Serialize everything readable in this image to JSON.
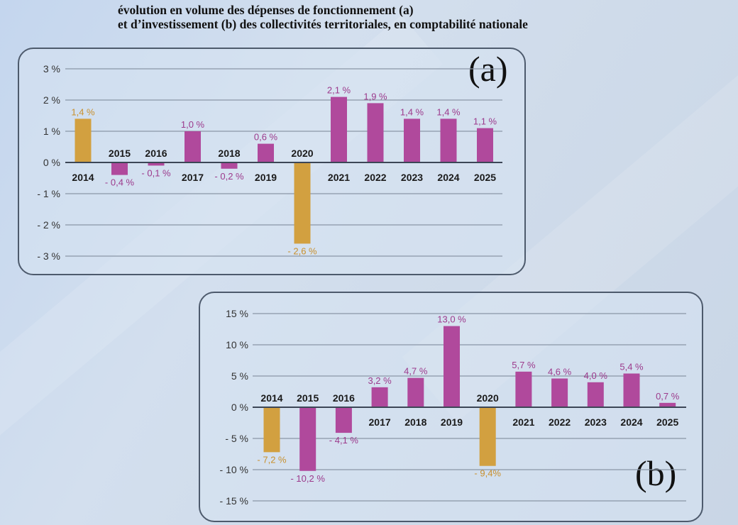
{
  "title": {
    "line1": "évolution en volume des dépenses de fonctionnement (a)",
    "line2": "et d’investissement (b) des collectivités territoriales, en comptabilité nationale"
  },
  "colors": {
    "highlight": "#d2a040",
    "default": "#b0499c",
    "label_default": "#9c3a8c",
    "label_highlight": "#c8902e",
    "grid": "#8a96a6",
    "axis": "#3c4656"
  },
  "chart_data": [
    {
      "type": "bar",
      "panel_label": "(a)",
      "categories": [
        "2014",
        "2015",
        "2016",
        "2017",
        "2018",
        "2019",
        "2020",
        "2021",
        "2022",
        "2023",
        "2024",
        "2025"
      ],
      "values": [
        1.4,
        -0.4,
        -0.1,
        1.0,
        -0.2,
        0.6,
        -2.6,
        2.1,
        1.9,
        1.4,
        1.4,
        1.1
      ],
      "value_labels": [
        "1,4 %",
        "- 0,4 %",
        "- 0,1 %",
        "1,0 %",
        "- 0,2 %",
        "0,6 %",
        "- 2,6 %",
        "2,1 %",
        "1,9 %",
        "1,4 %",
        "1,4 %",
        "1,1 %"
      ],
      "highlighted": [
        "2014",
        "2020"
      ],
      "ylim": [
        -3,
        3
      ],
      "yticks": [
        3,
        2,
        1,
        0,
        -1,
        -2,
        -3
      ],
      "ytick_labels": [
        "3 %",
        "2 %",
        "1 %",
        "0 %",
        "- 1 %",
        "- 2 %",
        "- 3 %"
      ],
      "grid": true
    },
    {
      "type": "bar",
      "panel_label": "(b)",
      "categories": [
        "2014",
        "2015",
        "2016",
        "2017",
        "2018",
        "2019",
        "2020",
        "2021",
        "2022",
        "2023",
        "2024",
        "2025"
      ],
      "values": [
        -7.2,
        -10.2,
        -4.1,
        3.2,
        4.7,
        13.0,
        -9.4,
        5.7,
        4.6,
        4.0,
        5.4,
        0.7
      ],
      "value_labels": [
        "- 7,2 %",
        "- 10,2 %",
        "- 4,1 %",
        "3,2 %",
        "4,7 %",
        "13,0 %",
        "- 9,4%",
        "5,7 %",
        "4,6 %",
        "4,0 %",
        "5,4 %",
        "0,7 %"
      ],
      "highlighted": [
        "2014",
        "2020"
      ],
      "ylim": [
        -15,
        15
      ],
      "yticks": [
        15,
        10,
        5,
        0,
        -5,
        -10,
        -15
      ],
      "ytick_labels": [
        "15 %",
        "10 %",
        "5 %",
        "0 %",
        "- 5 %",
        "- 10 %",
        "- 15 %"
      ],
      "grid": true
    }
  ]
}
